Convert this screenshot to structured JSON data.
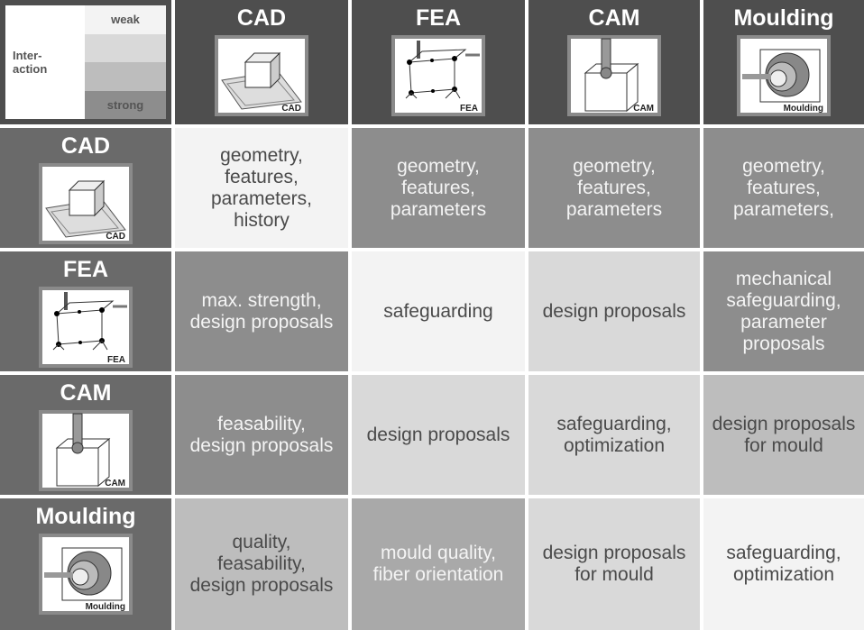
{
  "legend": {
    "label_lines": [
      "Inter-",
      "action"
    ],
    "weak": "weak",
    "strong": "strong",
    "shades": [
      "#f3f3f3",
      "#d9d9d9",
      "#bdbdbd",
      "#8d8d8d"
    ]
  },
  "columns": [
    {
      "title": "CAD",
      "icon_label": "CAD"
    },
    {
      "title": "FEA",
      "icon_label": "FEA"
    },
    {
      "title": "CAM",
      "icon_label": "CAM"
    },
    {
      "title": "Moulding",
      "icon_label": "Moulding"
    }
  ],
  "rows": [
    {
      "title": "CAD",
      "icon_label": "CAD",
      "cells": [
        {
          "text": "geometry, features, parameters, history",
          "shade": "#f3f3f3"
        },
        {
          "text": "geometry, features, parameters",
          "shade": "#8d8d8d"
        },
        {
          "text": "geometry, features, parameters",
          "shade": "#8d8d8d"
        },
        {
          "text": "geometry, features, parameters,",
          "shade": "#8d8d8d"
        }
      ]
    },
    {
      "title": "FEA",
      "icon_label": "FEA",
      "cells": [
        {
          "text": "max. strength, design proposals",
          "shade": "#8d8d8d"
        },
        {
          "text": "safeguarding",
          "shade": "#f3f3f3"
        },
        {
          "text": "design proposals",
          "shade": "#d9d9d9"
        },
        {
          "text": "mechanical safeguarding, parameter proposals",
          "shade": "#8d8d8d"
        }
      ]
    },
    {
      "title": "CAM",
      "icon_label": "CAM",
      "cells": [
        {
          "text": "feasability, design proposals",
          "shade": "#8d8d8d"
        },
        {
          "text": "design proposals",
          "shade": "#d9d9d9"
        },
        {
          "text": "safeguarding, optimization",
          "shade": "#d9d9d9"
        },
        {
          "text": "design proposals for mould",
          "shade": "#bdbdbd"
        }
      ]
    },
    {
      "title": "Moulding",
      "icon_label": "Moulding",
      "cells": [
        {
          "text": "quality, feasability, design proposals",
          "shade": "#bdbdbd"
        },
        {
          "text": "mould quality, fiber orientation",
          "shade": "#a9a9a9"
        },
        {
          "text": "design proposals for mould",
          "shade": "#d9d9d9"
        },
        {
          "text": "safeguarding, optimization",
          "shade": "#f3f3f3"
        }
      ]
    }
  ]
}
